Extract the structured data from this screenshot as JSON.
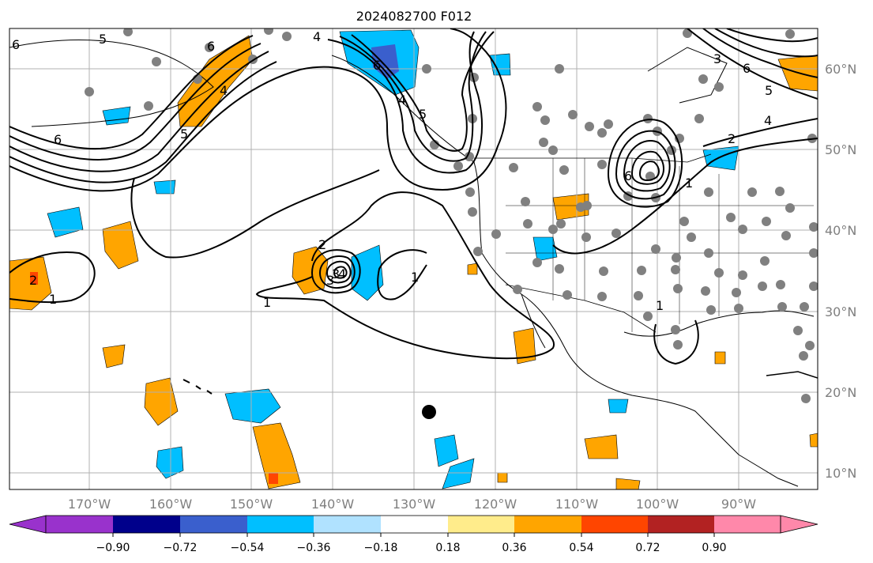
{
  "title": "2024082700 F012",
  "map": {
    "lon_labels": [
      "170°W",
      "160°W",
      "150°W",
      "140°W",
      "130°W",
      "120°W",
      "110°W",
      "100°W",
      "90°W"
    ],
    "lat_labels": [
      "10°N",
      "20°N",
      "30°N",
      "40°N",
      "50°N",
      "60°N"
    ],
    "contour_labels": [
      "6",
      "5",
      "6",
      "5",
      "4",
      "6",
      "4",
      "5",
      "6",
      "4",
      "2",
      "3",
      "1",
      "2",
      "3",
      "4",
      "1",
      "1",
      "1",
      "1",
      "6",
      "6",
      "5",
      "4",
      "3",
      "2"
    ],
    "colors": {
      "land_outline": "#000000",
      "grid": "#b0b0b0",
      "stations": "#808080",
      "marker": "#000000"
    }
  },
  "colorbar": {
    "ticks": [
      "−0.90",
      "−0.72",
      "−0.54",
      "−0.36",
      "−0.18",
      "0.18",
      "0.36",
      "0.54",
      "0.72",
      "0.90"
    ],
    "colors": [
      "#9932cc",
      "#00008b",
      "#3a5fcd",
      "#00bfff",
      "#b0e2ff",
      "#ffffff",
      "#ffec8b",
      "#ffa500",
      "#ff4500",
      "#b22222",
      "#ff88aa"
    ]
  }
}
